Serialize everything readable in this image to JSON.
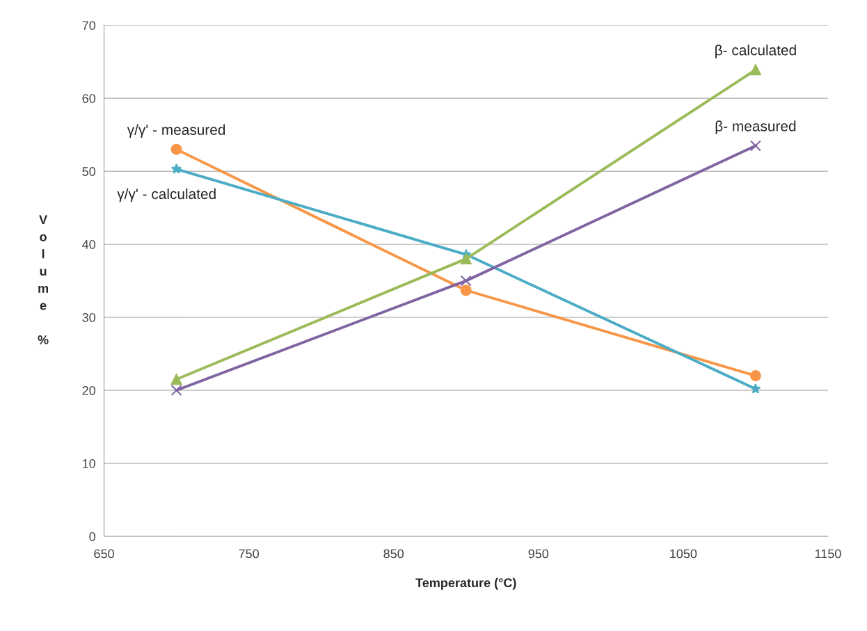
{
  "chart_data": {
    "type": "line",
    "xlabel": "Temperature (°C)",
    "ylabel": "Volume %",
    "x": [
      700,
      900,
      1100
    ],
    "series": [
      {
        "name": "γ/γ' - measured",
        "color": "#f79646",
        "marker": "circle",
        "values": [
          53,
          33.7,
          22
        ]
      },
      {
        "name": "γ/γ' - calculated",
        "color": "#4bacc6",
        "marker": "star",
        "values": [
          50.3,
          38.6,
          20.2
        ]
      },
      {
        "name": "β- calculated",
        "color": "#9bbb59",
        "marker": "triangle",
        "values": [
          21.5,
          38,
          63.9
        ]
      },
      {
        "name": "β- measured",
        "color": "#8064a2",
        "marker": "cross",
        "values": [
          20,
          35,
          53.5
        ]
      }
    ],
    "xlim": [
      650,
      1150
    ],
    "xticks": [
      650,
      750,
      850,
      950,
      1050,
      1150
    ],
    "ylim": [
      0,
      70
    ],
    "yticks": [
      0,
      10,
      20,
      30,
      40,
      50,
      60,
      70
    ],
    "grid": "y",
    "legend": false,
    "line_style": "solid"
  }
}
